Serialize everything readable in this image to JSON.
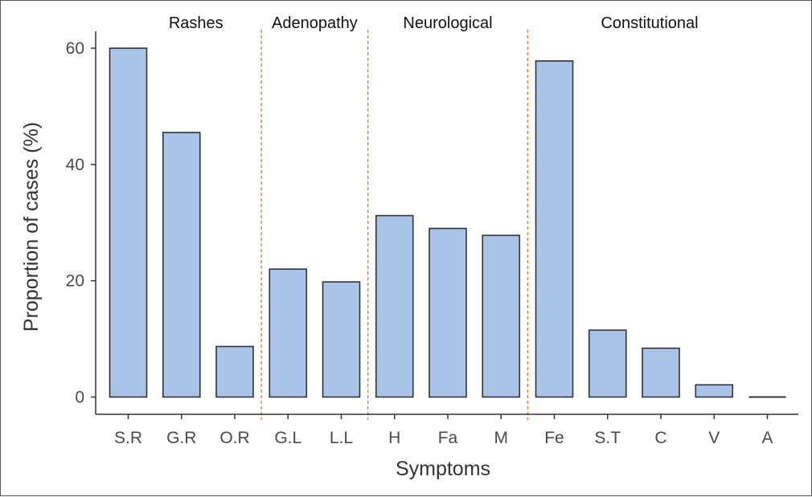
{
  "chart_data": {
    "type": "bar",
    "title": "",
    "xlabel": "Symptoms",
    "ylabel": "Proportion of cases (%)",
    "ylim": [
      0,
      62
    ],
    "yticks": [
      0,
      20,
      40,
      60
    ],
    "categories": [
      "S.R",
      "G.R",
      "O.R",
      "G.L",
      "L.L",
      "H",
      "Fa",
      "M",
      "Fe",
      "S.T",
      "C",
      "V",
      "A"
    ],
    "values": [
      60,
      45.5,
      8.7,
      22,
      19.8,
      31.2,
      29,
      27.8,
      57.8,
      11.5,
      8.4,
      2.1,
      0.1
    ],
    "groups": [
      {
        "label": "Rashes",
        "categories": [
          "S.R",
          "G.R",
          "O.R"
        ]
      },
      {
        "label": "Adenopathy",
        "categories": [
          "G.L",
          "L.L"
        ]
      },
      {
        "label": "Neurological",
        "categories": [
          "H",
          "Fa",
          "M"
        ]
      },
      {
        "label": "Constitutional",
        "categories": [
          "Fe",
          "S.T",
          "C",
          "V",
          "A"
        ]
      }
    ],
    "grid": false,
    "bar_color": "#a9c4e8",
    "bar_edge_color": "#333333",
    "separator_color": "#e07b39"
  }
}
